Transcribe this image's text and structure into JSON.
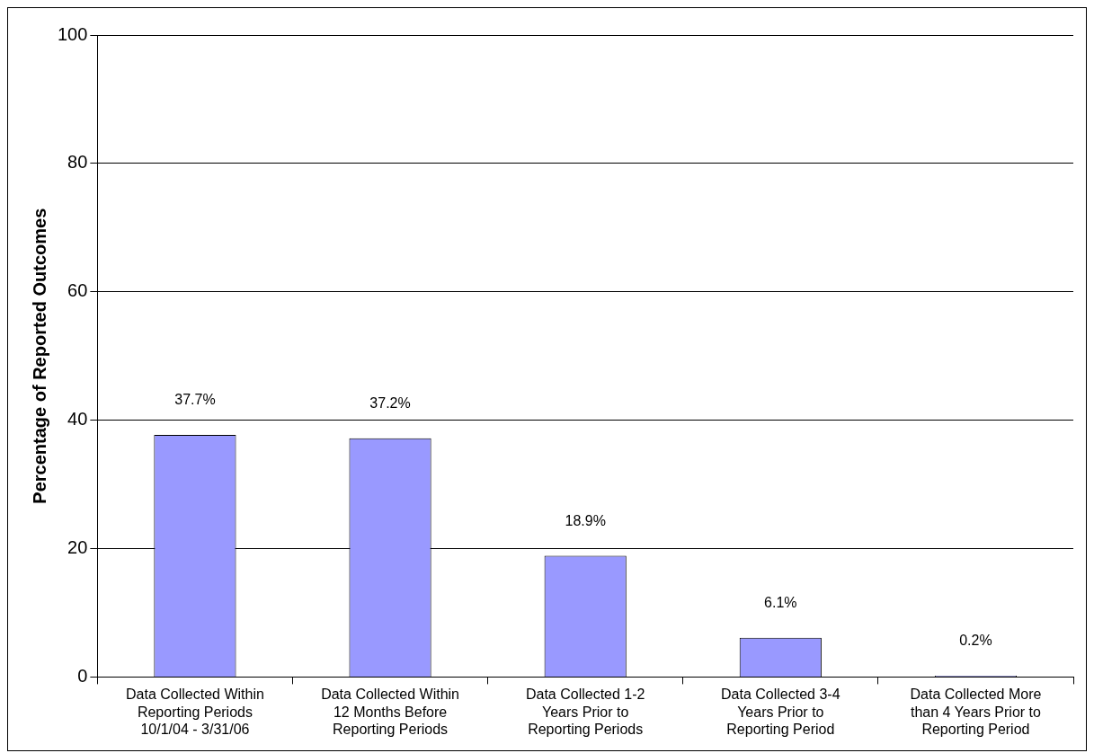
{
  "chart_data": {
    "type": "bar",
    "ylabel": "Percentage of Reported Outcomes",
    "categories": [
      "Data Collected Within Reporting Periods 10/1/04 - 3/31/06",
      "Data Collected Within 12 Months Before Reporting Periods",
      "Data Collected 1-2 Years Prior to Reporting Periods",
      "Data Collected 3-4 Years Prior to Reporting Period",
      "Data Collected More than 4 Years Prior to Reporting Period"
    ],
    "values": [
      37.7,
      37.2,
      18.9,
      6.1,
      0.2
    ],
    "value_labels": [
      "37.7%",
      "37.2%",
      "18.9%",
      "6.1%",
      "0.2%"
    ],
    "color": "#9999ff",
    "ylim": [
      0,
      100
    ],
    "yticks": [
      0,
      20,
      40,
      60,
      80,
      100
    ],
    "grid": "y",
    "legend": false
  }
}
